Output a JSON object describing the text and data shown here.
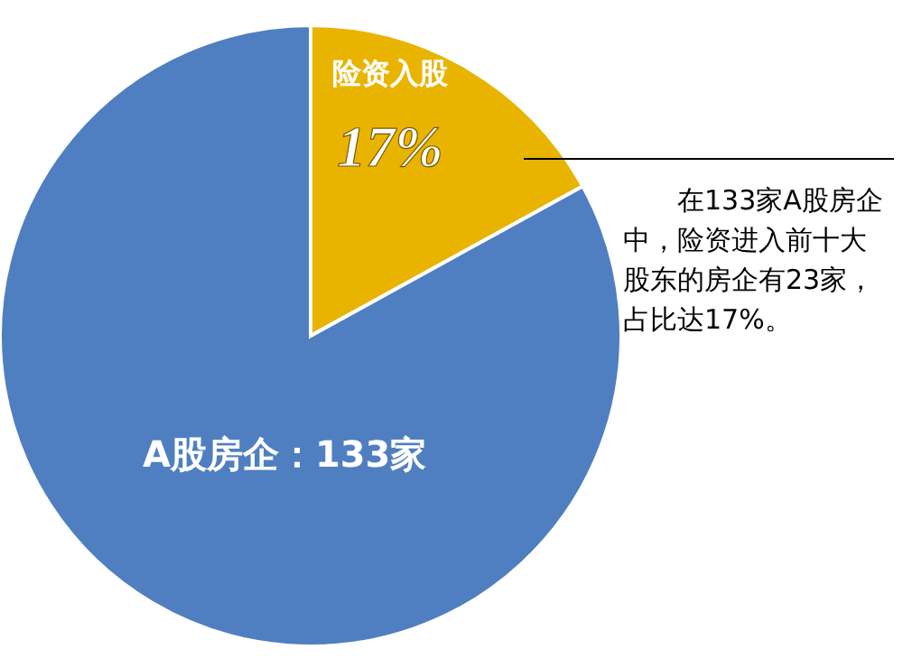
{
  "chart_data": {
    "type": "pie",
    "categories": [
      "险资入股",
      "A股房企：133家"
    ],
    "values": [
      17,
      83
    ],
    "colors": [
      "#e8b400",
      "#4f7fc0"
    ],
    "value_labels": [
      "17%",
      null
    ],
    "annotations": [
      "在133家A股房企中，险资进入前十大股东的房企有23家，占比达17%。"
    ]
  }
}
